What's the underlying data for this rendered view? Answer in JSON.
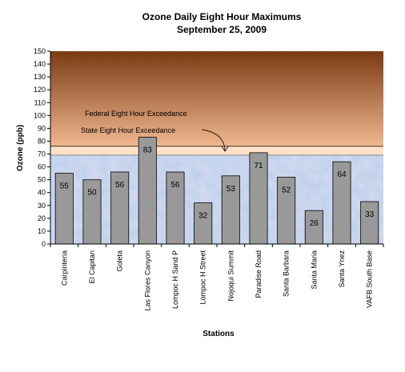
{
  "chart_data": {
    "type": "bar",
    "title": "Ozone Daily Eight Hour Maximums",
    "subtitle": "September 25, 2009",
    "xlabel": "Stations",
    "ylabel": "Ozone (ppb)",
    "ylim": [
      0,
      150
    ],
    "ytick_step": 10,
    "categories": [
      "Carpinteria",
      "El Capitan",
      "Goleta",
      "Las Flores Canyon",
      "Lompoc H Sand P",
      "Lompoc H Street",
      "Nojoqui Summit",
      "Paradise Road",
      "Santa Barbara",
      "Santa Maria",
      "Santa Ynez",
      "VAFB South Base"
    ],
    "values": [
      55,
      50,
      56,
      83,
      56,
      32,
      53,
      71,
      52,
      26,
      64,
      33
    ],
    "thresholds": [
      {
        "name": "Federal Eight Hour Exceedance",
        "value": 75
      },
      {
        "name": "State Eight Hour Exceedance",
        "value": 70
      }
    ],
    "colors": {
      "bar_fill": "#999999",
      "bar_stroke": "#000000",
      "good_zone": "#b9cfea",
      "threshold_band": "#fde2c9",
      "high_zone_top": "#7a3a12",
      "high_zone_bottom": "#f0b890"
    },
    "grid": false,
    "legend": "none"
  }
}
